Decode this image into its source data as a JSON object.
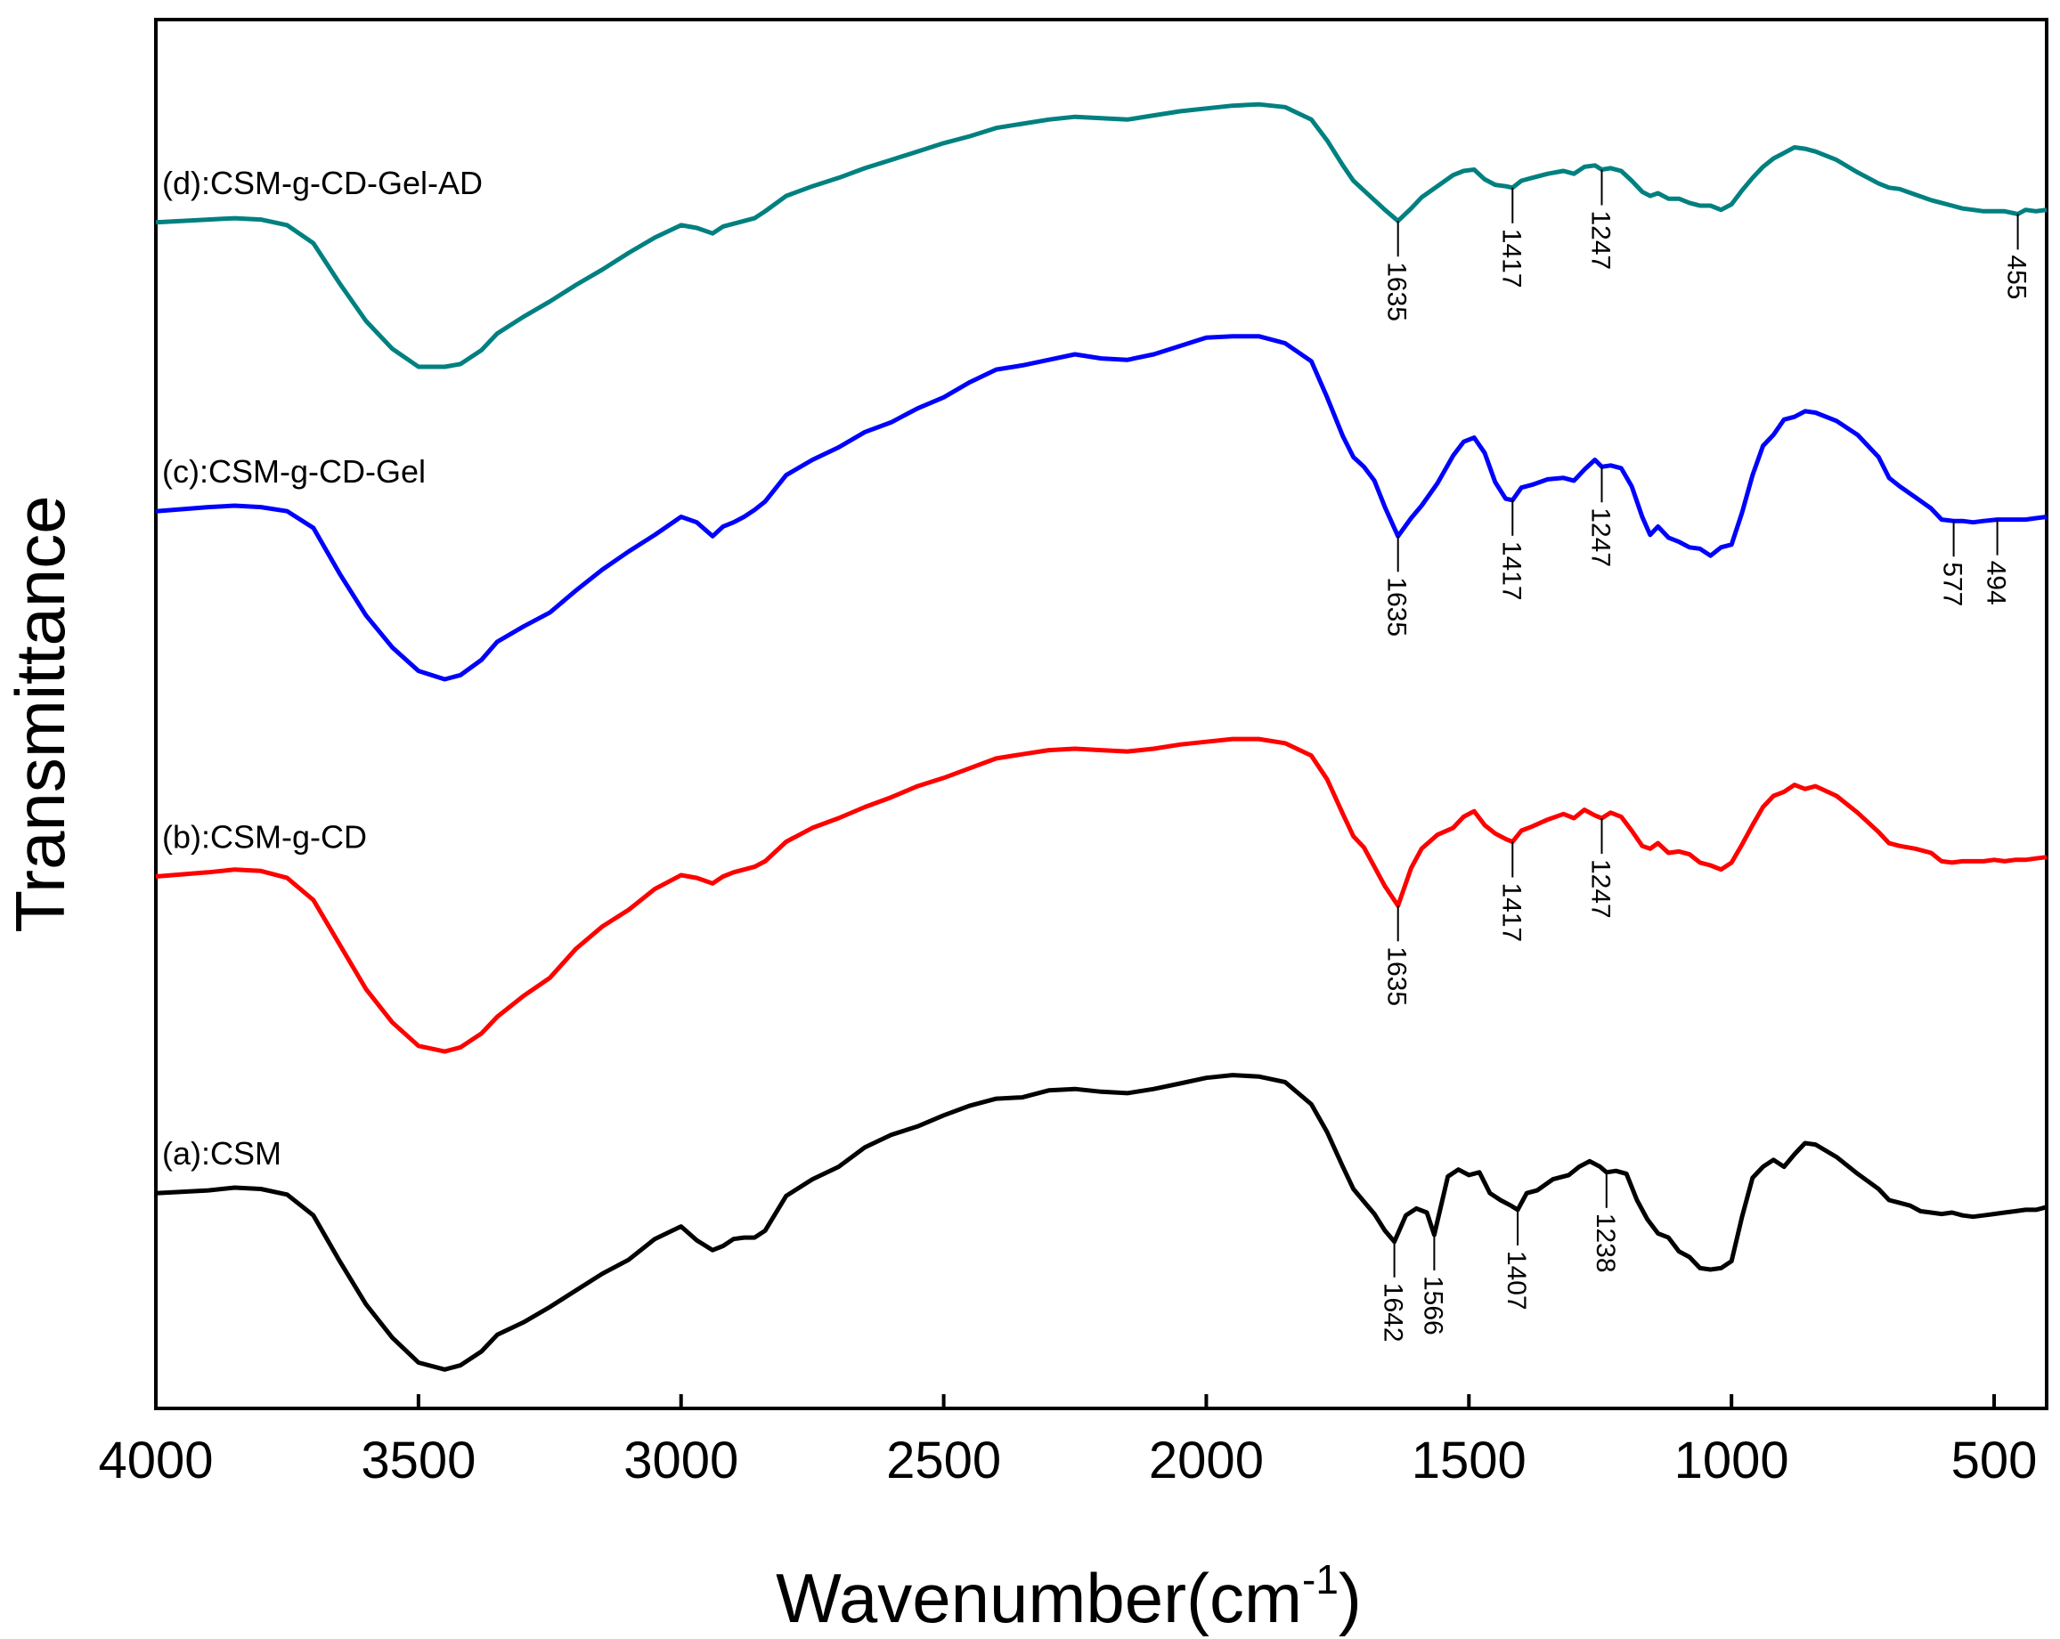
{
  "chart_data": {
    "type": "line",
    "title": "",
    "xlabel": "Wavenumber(cm",
    "xlabel_superscript": "-1",
    "xlabel_suffix": ")",
    "ylabel": "Transmittance",
    "xlim": [
      4000,
      400
    ],
    "ylim": [
      0,
      100
    ],
    "xticks": [
      4000,
      3500,
      3000,
      2500,
      2000,
      1500,
      1000,
      500
    ],
    "grid": false,
    "legend": "none",
    "colors": {
      "a": "#000000",
      "b": "#ff0000",
      "c": "#0000ff",
      "d": "#008080"
    },
    "series": [
      {
        "name": "(a):CSM",
        "key": "a",
        "x": [
          4000,
          3900,
          3850,
          3800,
          3750,
          3700,
          3650,
          3600,
          3550,
          3500,
          3450,
          3420,
          3380,
          3350,
          3300,
          3250,
          3200,
          3150,
          3100,
          3050,
          3000,
          2970,
          2940,
          2920,
          2900,
          2880,
          2860,
          2840,
          2800,
          2750,
          2700,
          2650,
          2600,
          2550,
          2500,
          2450,
          2400,
          2350,
          2300,
          2250,
          2200,
          2150,
          2100,
          2050,
          2000,
          1950,
          1900,
          1850,
          1800,
          1770,
          1740,
          1720,
          1700,
          1680,
          1660,
          1642,
          1620,
          1600,
          1580,
          1566,
          1540,
          1520,
          1500,
          1480,
          1460,
          1440,
          1420,
          1407,
          1390,
          1370,
          1340,
          1310,
          1290,
          1270,
          1250,
          1238,
          1220,
          1200,
          1180,
          1160,
          1140,
          1120,
          1100,
          1080,
          1060,
          1040,
          1020,
          1000,
          980,
          960,
          940,
          920,
          900,
          880,
          860,
          840,
          800,
          760,
          720,
          700,
          680,
          660,
          640,
          620,
          600,
          580,
          560,
          540,
          520,
          500,
          480,
          460,
          440,
          420,
          400
        ],
        "y": [
          15.5,
          15.7,
          15.9,
          15.8,
          15.4,
          13.9,
          10.6,
          7.5,
          5.1,
          3.3,
          2.8,
          3.1,
          4.1,
          5.3,
          6.2,
          7.3,
          8.5,
          9.7,
          10.7,
          12.2,
          13.1,
          12.1,
          11.4,
          11.7,
          12.2,
          12.3,
          12.3,
          12.8,
          15.3,
          16.5,
          17.4,
          18.8,
          19.7,
          20.3,
          21.1,
          21.8,
          22.3,
          22.4,
          22.9,
          23.0,
          22.8,
          22.7,
          23.0,
          23.4,
          23.8,
          24.0,
          23.9,
          23.5,
          21.9,
          19.9,
          17.4,
          15.8,
          14.9,
          14.0,
          12.8,
          12.0,
          13.9,
          14.4,
          14.1,
          12.5,
          16.7,
          17.2,
          16.8,
          17.0,
          15.5,
          15.0,
          14.6,
          14.3,
          15.5,
          15.7,
          16.5,
          16.8,
          17.4,
          17.8,
          17.4,
          17.0,
          17.1,
          16.9,
          15.0,
          13.6,
          12.6,
          12.3,
          11.3,
          10.9,
          10.1,
          10.0,
          10.1,
          10.6,
          13.8,
          16.6,
          17.4,
          17.9,
          17.4,
          18.3,
          19.1,
          19.0,
          18.1,
          16.9,
          15.8,
          15.0,
          14.8,
          14.6,
          14.2,
          14.1,
          14.0,
          14.1,
          13.9,
          13.8,
          13.9,
          14.0,
          14.1,
          14.2,
          14.3,
          14.3,
          14.5
        ]
      },
      {
        "name": "(b):CSM-g-CD",
        "key": "b",
        "x": [
          4000,
          3900,
          3850,
          3800,
          3750,
          3700,
          3650,
          3600,
          3550,
          3500,
          3450,
          3420,
          3380,
          3350,
          3300,
          3250,
          3200,
          3150,
          3100,
          3050,
          3000,
          2970,
          2940,
          2920,
          2900,
          2880,
          2860,
          2840,
          2800,
          2750,
          2700,
          2650,
          2600,
          2550,
          2500,
          2450,
          2400,
          2350,
          2300,
          2250,
          2200,
          2150,
          2100,
          2050,
          2000,
          1950,
          1900,
          1850,
          1800,
          1770,
          1740,
          1720,
          1700,
          1680,
          1660,
          1635,
          1610,
          1590,
          1560,
          1530,
          1510,
          1490,
          1470,
          1450,
          1430,
          1417,
          1400,
          1380,
          1350,
          1320,
          1300,
          1280,
          1260,
          1247,
          1230,
          1210,
          1190,
          1170,
          1155,
          1140,
          1120,
          1100,
          1080,
          1060,
          1040,
          1020,
          1000,
          980,
          960,
          940,
          920,
          900,
          880,
          860,
          840,
          800,
          760,
          720,
          700,
          680,
          650,
          620,
          600,
          580,
          560,
          540,
          520,
          500,
          480,
          460,
          440,
          420,
          400
        ],
        "y": [
          38.3,
          38.6,
          38.8,
          38.7,
          38.2,
          36.6,
          33.4,
          30.2,
          27.8,
          26.1,
          25.7,
          26.0,
          27.0,
          28.2,
          29.7,
          31.0,
          33.1,
          34.7,
          35.9,
          37.4,
          38.4,
          38.2,
          37.8,
          38.3,
          38.6,
          38.8,
          39.0,
          39.4,
          40.8,
          41.8,
          42.5,
          43.3,
          44.0,
          44.8,
          45.4,
          46.1,
          46.8,
          47.1,
          47.4,
          47.5,
          47.4,
          47.3,
          47.5,
          47.8,
          48.0,
          48.2,
          48.2,
          47.9,
          47.0,
          45.3,
          42.8,
          41.2,
          40.4,
          39.0,
          37.6,
          36.2,
          38.9,
          40.3,
          41.3,
          41.8,
          42.6,
          43.0,
          42.0,
          41.4,
          41.0,
          40.8,
          41.6,
          41.9,
          42.4,
          42.8,
          42.5,
          43.1,
          42.7,
          42.5,
          42.9,
          42.6,
          41.6,
          40.5,
          40.3,
          40.7,
          40.0,
          40.1,
          39.9,
          39.3,
          39.1,
          38.8,
          39.3,
          40.6,
          42.0,
          43.3,
          44.1,
          44.4,
          44.9,
          44.6,
          44.8,
          44.1,
          42.9,
          41.5,
          40.7,
          40.5,
          40.3,
          40.0,
          39.4,
          39.3,
          39.4,
          39.4,
          39.4,
          39.5,
          39.4,
          39.5,
          39.5,
          39.6,
          39.7
        ]
      },
      {
        "name": "(c):CSM-g-CD-Gel",
        "key": "c",
        "x": [
          4000,
          3900,
          3850,
          3800,
          3750,
          3700,
          3650,
          3600,
          3550,
          3500,
          3450,
          3420,
          3380,
          3350,
          3300,
          3250,
          3200,
          3150,
          3100,
          3050,
          3000,
          2970,
          2940,
          2920,
          2900,
          2880,
          2860,
          2840,
          2800,
          2750,
          2700,
          2650,
          2600,
          2550,
          2500,
          2450,
          2400,
          2350,
          2300,
          2250,
          2200,
          2150,
          2100,
          2050,
          2000,
          1950,
          1900,
          1850,
          1800,
          1770,
          1740,
          1720,
          1700,
          1680,
          1660,
          1635,
          1610,
          1590,
          1560,
          1530,
          1510,
          1490,
          1470,
          1450,
          1430,
          1417,
          1400,
          1380,
          1350,
          1320,
          1300,
          1280,
          1260,
          1247,
          1230,
          1210,
          1190,
          1170,
          1155,
          1140,
          1120,
          1100,
          1080,
          1060,
          1040,
          1020,
          1000,
          980,
          960,
          940,
          920,
          900,
          880,
          860,
          840,
          800,
          760,
          720,
          700,
          680,
          650,
          620,
          600,
          577,
          560,
          540,
          520,
          494,
          480,
          460,
          440,
          420,
          400
        ],
        "y": [
          64.6,
          64.9,
          65.0,
          64.9,
          64.6,
          63.4,
          60.1,
          57.1,
          54.8,
          53.1,
          52.5,
          52.8,
          53.9,
          55.2,
          56.3,
          57.3,
          58.9,
          60.4,
          61.7,
          62.9,
          64.2,
          63.8,
          62.8,
          63.5,
          63.8,
          64.2,
          64.7,
          65.3,
          67.2,
          68.3,
          69.2,
          70.3,
          71.0,
          72.0,
          72.8,
          73.9,
          74.8,
          75.1,
          75.5,
          75.9,
          75.6,
          75.5,
          75.9,
          76.5,
          77.1,
          77.2,
          77.2,
          76.7,
          75.4,
          72.8,
          70.0,
          68.5,
          67.8,
          66.8,
          64.9,
          62.8,
          64.1,
          65.0,
          66.6,
          68.6,
          69.6,
          69.9,
          68.8,
          66.7,
          65.5,
          65.4,
          66.3,
          66.5,
          66.9,
          67.0,
          66.8,
          67.6,
          68.3,
          67.8,
          67.9,
          67.7,
          66.4,
          64.2,
          62.9,
          63.5,
          62.7,
          62.4,
          62.0,
          61.9,
          61.4,
          62.0,
          62.2,
          64.5,
          67.2,
          69.3,
          70.1,
          71.2,
          71.4,
          71.8,
          71.7,
          71.1,
          70.1,
          68.5,
          67.0,
          66.4,
          65.6,
          64.8,
          64.0,
          63.9,
          63.9,
          63.8,
          63.9,
          64.0,
          64.0,
          64.0,
          64.0,
          64.1,
          64.2
        ]
      },
      {
        "name": "(d):CSM-g-CD-Gel-AD",
        "key": "d",
        "x": [
          4000,
          3900,
          3850,
          3800,
          3750,
          3700,
          3650,
          3600,
          3550,
          3500,
          3450,
          3420,
          3380,
          3350,
          3300,
          3250,
          3200,
          3150,
          3100,
          3050,
          3000,
          2970,
          2940,
          2920,
          2900,
          2880,
          2860,
          2840,
          2800,
          2750,
          2700,
          2650,
          2600,
          2550,
          2500,
          2450,
          2400,
          2350,
          2300,
          2250,
          2200,
          2150,
          2100,
          2050,
          2000,
          1950,
          1900,
          1850,
          1800,
          1770,
          1740,
          1720,
          1700,
          1680,
          1660,
          1635,
          1610,
          1590,
          1560,
          1530,
          1510,
          1490,
          1470,
          1450,
          1430,
          1417,
          1400,
          1380,
          1350,
          1320,
          1300,
          1280,
          1260,
          1247,
          1230,
          1210,
          1190,
          1170,
          1155,
          1140,
          1120,
          1100,
          1080,
          1060,
          1040,
          1020,
          1000,
          980,
          960,
          940,
          920,
          900,
          880,
          860,
          840,
          800,
          760,
          720,
          700,
          680,
          650,
          620,
          600,
          580,
          560,
          540,
          520,
          500,
          480,
          455,
          440,
          420,
          400
        ],
        "y": [
          85.4,
          85.6,
          85.7,
          85.6,
          85.2,
          83.9,
          81.0,
          78.3,
          76.3,
          75.0,
          75.0,
          75.2,
          76.2,
          77.4,
          78.6,
          79.7,
          80.9,
          82.0,
          83.2,
          84.3,
          85.2,
          85.0,
          84.6,
          85.1,
          85.3,
          85.5,
          85.7,
          86.2,
          87.3,
          88.0,
          88.6,
          89.3,
          89.9,
          90.5,
          91.1,
          91.6,
          92.2,
          92.5,
          92.8,
          93.0,
          92.9,
          92.8,
          93.1,
          93.4,
          93.6,
          93.8,
          93.9,
          93.7,
          92.8,
          91.3,
          89.5,
          88.4,
          87.7,
          87.0,
          86.3,
          85.5,
          86.4,
          87.2,
          88.0,
          88.8,
          89.1,
          89.2,
          88.5,
          88.1,
          88.0,
          87.9,
          88.4,
          88.6,
          88.9,
          89.1,
          88.9,
          89.4,
          89.5,
          89.2,
          89.3,
          89.1,
          88.4,
          87.6,
          87.3,
          87.5,
          87.1,
          87.1,
          86.8,
          86.6,
          86.6,
          86.3,
          86.7,
          87.7,
          88.6,
          89.4,
          90.0,
          90.4,
          90.8,
          90.7,
          90.5,
          89.9,
          89.0,
          88.2,
          87.9,
          87.8,
          87.4,
          87.0,
          86.8,
          86.6,
          86.4,
          86.3,
          86.2,
          86.2,
          86.2,
          86.0,
          86.3,
          86.2,
          86.3
        ]
      }
    ],
    "annotations": [
      {
        "series": "a",
        "label": "1642",
        "x": 1642
      },
      {
        "series": "a",
        "label": "1566",
        "x": 1566
      },
      {
        "series": "a",
        "label": "1407",
        "x": 1407
      },
      {
        "series": "a",
        "label": "1238",
        "x": 1238
      },
      {
        "series": "b",
        "label": "1635",
        "x": 1635
      },
      {
        "series": "b",
        "label": "1417",
        "x": 1417
      },
      {
        "series": "b",
        "label": "1247",
        "x": 1247
      },
      {
        "series": "c",
        "label": "1635",
        "x": 1635
      },
      {
        "series": "c",
        "label": "1417",
        "x": 1417
      },
      {
        "series": "c",
        "label": "1247",
        "x": 1247
      },
      {
        "series": "c",
        "label": "577",
        "x": 577
      },
      {
        "series": "c",
        "label": "494",
        "x": 494
      },
      {
        "series": "d",
        "label": "1635",
        "x": 1635
      },
      {
        "series": "d",
        "label": "1417",
        "x": 1417
      },
      {
        "series": "d",
        "label": "1247",
        "x": 1247
      },
      {
        "series": "d",
        "label": "455",
        "x": 455
      }
    ]
  }
}
